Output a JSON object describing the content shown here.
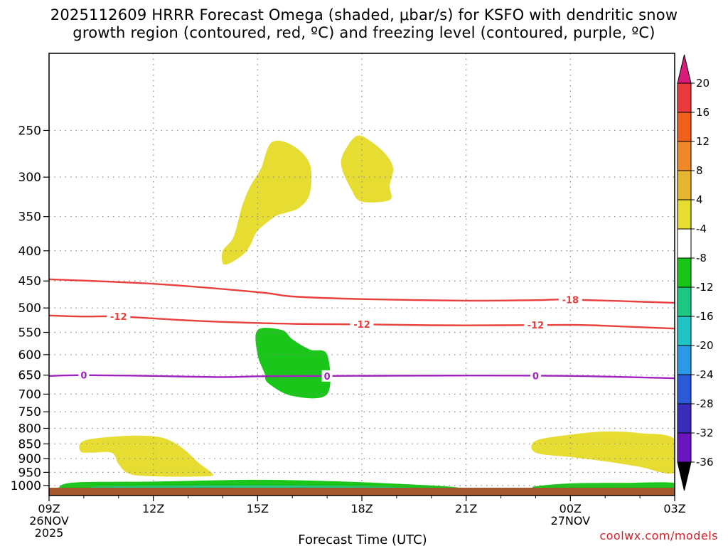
{
  "title_line1": "2025112609 HRRR Forecast Omega (shaded, μbar/s) for KSFO with dendritic snow",
  "title_line2": "growth region (contoured, red, ºC) and freezing level (contoured, purple, ºC)",
  "credit": "coolwx.com/models",
  "chart_data": {
    "type": "heatmap",
    "title": "2025112609 HRRR Forecast Omega (shaded, μbar/s) for KSFO with dendritic snow growth region (contoured, red, ºC) and freezing level (contoured, purple, ºC)",
    "xlabel": "Forecast Time (UTC)",
    "ylabel": "",
    "x_range_hours": [
      0,
      18
    ],
    "x_ticks": [
      {
        "h": 0,
        "lines": [
          "09Z",
          "26NOV",
          "2025"
        ]
      },
      {
        "h": 3,
        "lines": [
          "12Z"
        ]
      },
      {
        "h": 6,
        "lines": [
          "15Z"
        ]
      },
      {
        "h": 9,
        "lines": [
          "18Z"
        ]
      },
      {
        "h": 12,
        "lines": [
          "21Z"
        ]
      },
      {
        "h": 15,
        "lines": [
          "00Z",
          "27NOV"
        ]
      },
      {
        "h": 18,
        "lines": [
          "03Z"
        ]
      }
    ],
    "y_range_hpa": [
      1040,
      185
    ],
    "y_ticks": [
      250,
      300,
      350,
      400,
      450,
      500,
      550,
      600,
      650,
      700,
      750,
      800,
      850,
      900,
      950,
      1000
    ],
    "grid": true,
    "colorbar": {
      "labels": [
        20,
        16,
        12,
        8,
        4,
        -4,
        -8,
        -12,
        -16,
        -20,
        -24,
        -28,
        -32,
        -36
      ],
      "colors": [
        "#d81b78",
        "#ea3a3e",
        "#f2601e",
        "#f0892a",
        "#e7b630",
        "#e7dd32",
        "#ffffff",
        "#19c619",
        "#1ec882",
        "#20c4c4",
        "#2a9ae6",
        "#2a5ad8",
        "#3a2cb8",
        "#6a16c0",
        "#a020c0",
        "#a0a0a0",
        "#000000"
      ]
    },
    "omega_regions": [
      {
        "color": "#e7dd32",
        "value_range": [
          4,
          8
        ],
        "pts": [
          [
            5.0,
            420
          ],
          [
            5.0,
            400
          ],
          [
            5.3,
            380
          ],
          [
            5.5,
            345
          ],
          [
            5.6,
            330
          ],
          [
            5.8,
            310
          ],
          [
            6.1,
            290
          ],
          [
            6.4,
            262
          ],
          [
            7.0,
            265
          ],
          [
            7.5,
            285
          ],
          [
            7.5,
            320
          ],
          [
            7.2,
            338
          ],
          [
            6.8,
            345
          ],
          [
            6.5,
            350
          ],
          [
            6.0,
            370
          ],
          [
            5.8,
            390
          ],
          [
            5.6,
            405
          ],
          [
            5.2,
            420
          ]
        ]
      },
      {
        "color": "#e7dd32",
        "value_range": [
          4,
          8
        ],
        "pts": [
          [
            8.4,
            285
          ],
          [
            8.6,
            265
          ],
          [
            8.9,
            255
          ],
          [
            9.3,
            262
          ],
          [
            9.7,
            275
          ],
          [
            9.9,
            290
          ],
          [
            9.8,
            310
          ],
          [
            9.8,
            328
          ],
          [
            9.0,
            330
          ],
          [
            8.7,
            315
          ]
        ]
      },
      {
        "color": "#e7dd32",
        "value_range": [
          4,
          8
        ],
        "pts": [
          [
            0.9,
            875
          ],
          [
            1.0,
            840
          ],
          [
            2.0,
            825
          ],
          [
            3.0,
            825
          ],
          [
            3.5,
            840
          ],
          [
            3.9,
            870
          ],
          [
            4.3,
            915
          ],
          [
            4.7,
            955
          ],
          [
            4.5,
            965
          ],
          [
            3.0,
            965
          ],
          [
            2.3,
            955
          ],
          [
            2.0,
            920
          ],
          [
            1.8,
            880
          ],
          [
            1.2,
            880
          ]
        ]
      },
      {
        "color": "#e7dd32",
        "value_range": [
          4,
          8
        ],
        "pts": [
          [
            14.0,
            840
          ],
          [
            15.0,
            820
          ],
          [
            16.0,
            810
          ],
          [
            17.0,
            815
          ],
          [
            18.0,
            835
          ],
          [
            18.0,
            950
          ],
          [
            17.0,
            930
          ],
          [
            16.0,
            910
          ],
          [
            15.0,
            895
          ],
          [
            14.0,
            880
          ]
        ]
      },
      {
        "color": "#19c619",
        "value_range": [
          -8,
          -4
        ],
        "pts": [
          [
            6.0,
            545
          ],
          [
            6.7,
            545
          ],
          [
            7.0,
            565
          ],
          [
            7.5,
            588
          ],
          [
            8.0,
            600
          ],
          [
            8.0,
            700
          ],
          [
            7.0,
            705
          ],
          [
            6.3,
            670
          ],
          [
            6.2,
            645
          ],
          [
            6.0,
            600
          ]
        ]
      },
      {
        "color": "#19c619",
        "value_range": [
          -8,
          -4
        ],
        "pts": [
          [
            0.3,
            1005
          ],
          [
            0.8,
            988
          ],
          [
            3.0,
            985
          ],
          [
            6.0,
            978
          ],
          [
            8.5,
            985
          ],
          [
            11.0,
            1000
          ],
          [
            11.8,
            1010
          ],
          [
            11.0,
            1020
          ],
          [
            8.0,
            1025
          ],
          [
            5.0,
            1025
          ],
          [
            2.0,
            1025
          ],
          [
            0.5,
            1020
          ]
        ]
      },
      {
        "color": "#1ec882",
        "value_range": [
          -12,
          -8
        ],
        "pts": [
          [
            1.3,
            1005
          ],
          [
            3.0,
            1002
          ],
          [
            5.0,
            1000
          ],
          [
            7.0,
            1000
          ],
          [
            9.0,
            1004
          ],
          [
            11.0,
            1012
          ],
          [
            9.0,
            1018
          ],
          [
            6.0,
            1020
          ],
          [
            3.0,
            1020
          ],
          [
            1.5,
            1015
          ]
        ]
      },
      {
        "color": "#19c619",
        "value_range": [
          -8,
          -4
        ],
        "pts": [
          [
            14.0,
            1003
          ],
          [
            15.0,
            992
          ],
          [
            16.5,
            990
          ],
          [
            18.0,
            990
          ],
          [
            18.0,
            1022
          ],
          [
            16.0,
            1022
          ],
          [
            14.5,
            1018
          ],
          [
            14.0,
            1012
          ]
        ]
      }
    ],
    "contours": [
      {
        "color": "#e8403c",
        "label": "-18",
        "label_at_hours": 15.0,
        "pts": [
          [
            0,
            447
          ],
          [
            3,
            455
          ],
          [
            6,
            470
          ],
          [
            7,
            478
          ],
          [
            9,
            483
          ],
          [
            12,
            486
          ],
          [
            14,
            485
          ],
          [
            15,
            484
          ],
          [
            18,
            490
          ]
        ]
      },
      {
        "color": "#e8403c",
        "label": "-12",
        "label_at_hours": [
          2.0,
          9.0,
          14.0
        ],
        "pts": [
          [
            0,
            515
          ],
          [
            1,
            517
          ],
          [
            2,
            517
          ],
          [
            4,
            525
          ],
          [
            5,
            528
          ],
          [
            7,
            532
          ],
          [
            9,
            533
          ],
          [
            11,
            535
          ],
          [
            13,
            535
          ],
          [
            15,
            534
          ],
          [
            16,
            536
          ],
          [
            18,
            542
          ]
        ]
      },
      {
        "color": "#a020c0",
        "label": "0",
        "label_at_hours": [
          1.0,
          8.0,
          14.0
        ],
        "pts": [
          [
            0,
            652
          ],
          [
            1,
            650
          ],
          [
            3,
            652
          ],
          [
            5,
            655
          ],
          [
            6,
            653
          ],
          [
            8,
            652
          ],
          [
            12,
            651
          ],
          [
            15,
            652
          ],
          [
            18,
            658
          ]
        ]
      }
    ],
    "ground_color": "#a4562c"
  }
}
